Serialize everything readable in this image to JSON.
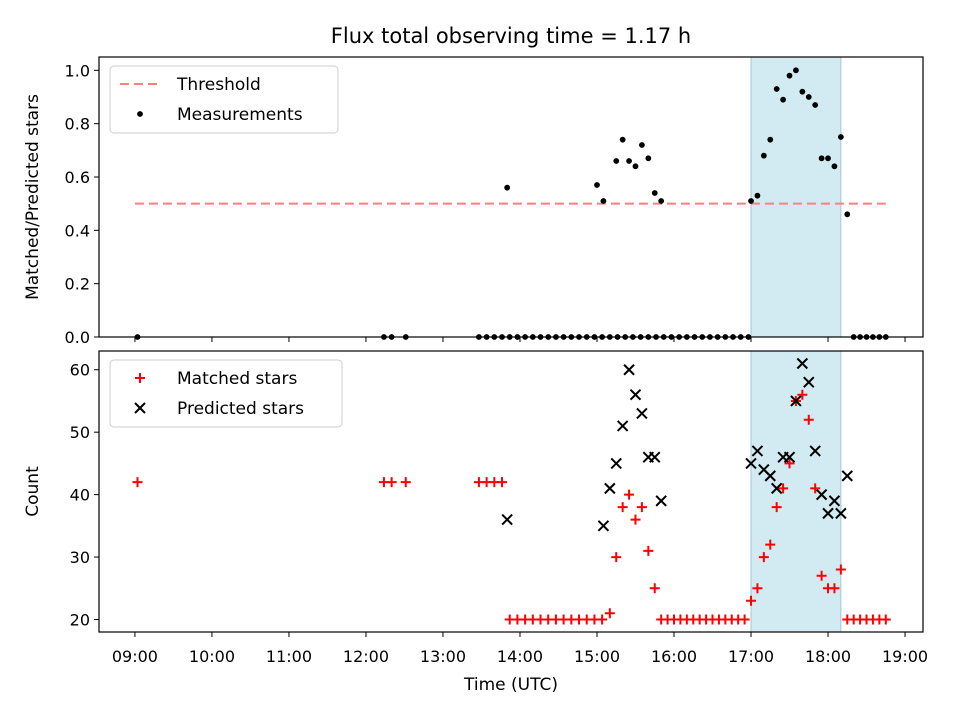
{
  "figure": {
    "title": "Flux total observing time = 1.17 h",
    "xlabel": "Time (UTC)"
  },
  "chart_data": [
    {
      "type": "scatter",
      "ylabel": "Matched/Predicted stars",
      "xlim": [
        "08:32",
        "19:14"
      ],
      "ylim": [
        0,
        1.05
      ],
      "yticks": [
        0.0,
        0.2,
        0.4,
        0.6,
        0.8,
        1.0
      ],
      "ytick_labels": [
        "0.0",
        "0.2",
        "0.4",
        "0.6",
        "0.8",
        "1.0"
      ],
      "xticks": [
        "09:00",
        "10:00",
        "11:00",
        "12:00",
        "13:00",
        "14:00",
        "15:00",
        "16:00",
        "17:00",
        "18:00",
        "19:00"
      ],
      "shaded_span": {
        "from": "17:00",
        "to": "18:10",
        "color": "#add8e6"
      },
      "legend": {
        "position": "top-left",
        "entries": [
          "Threshold",
          "Measurements"
        ]
      },
      "series": [
        {
          "name": "Threshold",
          "style": "dashed-line",
          "color": "#ff7f7f",
          "x": [
            "09:00",
            "18:45"
          ],
          "y": [
            0.5,
            0.5
          ]
        },
        {
          "name": "Measurements",
          "style": "dot",
          "color": "#000000",
          "x": [
            "09:02",
            "12:14",
            "12:20",
            "12:31",
            "13:28",
            "13:34",
            "13:40",
            "13:46",
            "13:52",
            "13:58",
            "14:04",
            "14:10",
            "14:16",
            "14:22",
            "14:28",
            "14:34",
            "14:40",
            "14:46",
            "14:52",
            "14:58",
            "15:04",
            "15:10",
            "15:16",
            "15:22",
            "15:28",
            "15:34",
            "15:40",
            "15:46",
            "15:52",
            "15:58",
            "16:04",
            "16:10",
            "16:16",
            "16:22",
            "16:28",
            "16:34",
            "16:40",
            "16:46",
            "16:52",
            "16:58",
            "13:50",
            "15:00",
            "15:05",
            "15:15",
            "15:20",
            "15:25",
            "15:30",
            "15:35",
            "15:40",
            "15:45",
            "15:50",
            "17:00",
            "17:05",
            "17:10",
            "17:15",
            "17:20",
            "17:25",
            "17:30",
            "17:35",
            "17:40",
            "17:45",
            "17:50",
            "17:55",
            "18:00",
            "18:05",
            "18:10",
            "18:15",
            "18:20",
            "18:25",
            "18:30",
            "18:35",
            "18:40",
            "18:45"
          ],
          "y": [
            0,
            0,
            0,
            0,
            0,
            0,
            0,
            0,
            0,
            0,
            0,
            0,
            0,
            0,
            0,
            0,
            0,
            0,
            0,
            0,
            0,
            0,
            0,
            0,
            0,
            0,
            0,
            0,
            0,
            0,
            0,
            0,
            0,
            0,
            0,
            0,
            0,
            0,
            0,
            0,
            0.56,
            0.57,
            0.51,
            0.66,
            0.74,
            0.66,
            0.64,
            0.72,
            0.67,
            0.54,
            0.51,
            0.51,
            0.53,
            0.68,
            0.74,
            0.93,
            0.89,
            0.98,
            1.0,
            0.92,
            0.9,
            0.87,
            0.67,
            0.67,
            0.64,
            0.75,
            0.46,
            0,
            0,
            0,
            0,
            0,
            0
          ]
        }
      ]
    },
    {
      "type": "scatter",
      "ylabel": "Count",
      "xlim": [
        "08:32",
        "19:14"
      ],
      "ylim": [
        18,
        63
      ],
      "yticks": [
        20,
        30,
        40,
        50,
        60
      ],
      "ytick_labels": [
        "20",
        "30",
        "40",
        "50",
        "60"
      ],
      "xticks": [
        "09:00",
        "10:00",
        "11:00",
        "12:00",
        "13:00",
        "14:00",
        "15:00",
        "16:00",
        "17:00",
        "18:00",
        "19:00"
      ],
      "xtick_labels": [
        "09:00",
        "10:00",
        "11:00",
        "12:00",
        "13:00",
        "14:00",
        "15:00",
        "16:00",
        "17:00",
        "18:00",
        "19:00"
      ],
      "shaded_span": {
        "from": "17:00",
        "to": "18:10",
        "color": "#add8e6"
      },
      "legend": {
        "position": "top-left",
        "entries": [
          "Matched stars",
          "Predicted stars"
        ]
      },
      "series": [
        {
          "name": "Matched stars",
          "style": "plus",
          "color": "#ff0000",
          "x": [
            "09:02",
            "12:14",
            "12:20",
            "12:31",
            "13:28",
            "13:34",
            "13:40",
            "13:46",
            "13:52",
            "13:58",
            "14:04",
            "14:10",
            "14:16",
            "14:22",
            "14:28",
            "14:34",
            "14:40",
            "14:46",
            "14:52",
            "14:58",
            "15:04",
            "15:10",
            "15:15",
            "15:20",
            "15:25",
            "15:30",
            "15:35",
            "15:40",
            "15:45",
            "15:50",
            "15:55",
            "16:00",
            "16:05",
            "16:10",
            "16:15",
            "16:20",
            "16:25",
            "16:30",
            "16:35",
            "16:40",
            "16:45",
            "16:50",
            "16:55",
            "17:00",
            "17:05",
            "17:10",
            "17:15",
            "17:20",
            "17:25",
            "17:30",
            "17:35",
            "17:40",
            "17:45",
            "17:50",
            "17:55",
            "18:00",
            "18:05",
            "18:10",
            "18:15",
            "18:20",
            "18:25",
            "18:30",
            "18:35",
            "18:40",
            "18:45"
          ],
          "y": [
            42,
            42,
            42,
            42,
            42,
            42,
            42,
            42,
            20,
            20,
            20,
            20,
            20,
            20,
            20,
            20,
            20,
            20,
            20,
            20,
            20,
            21,
            30,
            38,
            40,
            36,
            38,
            31,
            25,
            20,
            20,
            20,
            20,
            20,
            20,
            20,
            20,
            20,
            20,
            20,
            20,
            20,
            20,
            23,
            25,
            30,
            32,
            38,
            41,
            45,
            55,
            56,
            52,
            41,
            27,
            25,
            25,
            28,
            20,
            20,
            20,
            20,
            20,
            20,
            20
          ]
        },
        {
          "name": "Predicted stars",
          "style": "x",
          "color": "#000000",
          "x": [
            "13:50",
            "15:05",
            "15:10",
            "15:15",
            "15:20",
            "15:25",
            "15:30",
            "15:35",
            "15:40",
            "15:45",
            "15:50",
            "17:00",
            "17:05",
            "17:10",
            "17:15",
            "17:20",
            "17:25",
            "17:30",
            "17:35",
            "17:40",
            "17:45",
            "17:50",
            "17:55",
            "18:00",
            "18:05",
            "18:10",
            "18:15"
          ],
          "y": [
            36,
            35,
            41,
            45,
            51,
            60,
            56,
            53,
            46,
            46,
            39,
            45,
            47,
            44,
            43,
            41,
            46,
            46,
            55,
            61,
            58,
            47,
            40,
            37,
            39,
            37,
            43
          ]
        }
      ]
    }
  ]
}
